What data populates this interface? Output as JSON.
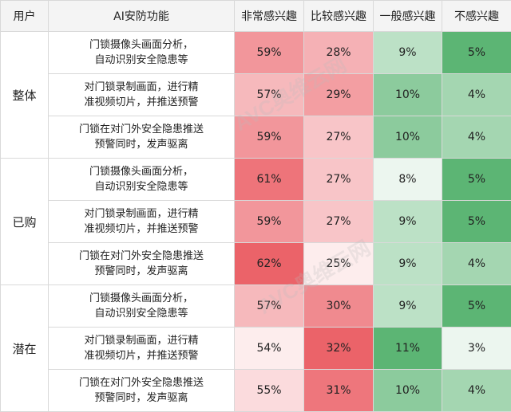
{
  "chart_data": {
    "type": "table",
    "headers": [
      "用户",
      "AI安防功能",
      "非常感兴趣",
      "比较感兴趣",
      "一般感兴趣",
      "不感兴趣"
    ],
    "groups": [
      {
        "name": "整体",
        "rows": [
          {
            "feature": "门锁摄像头画面分析，\n自动识别安全隐患等",
            "values": [
              "59%",
              "28%",
              "9%",
              "5%"
            ]
          },
          {
            "feature": "对门锁录制画面，进行精\n准视频切片，并推送预警",
            "values": [
              "57%",
              "29%",
              "10%",
              "4%"
            ]
          },
          {
            "feature": "门锁在对门外安全隐患推送\n预警同时，发声驱离",
            "values": [
              "59%",
              "27%",
              "10%",
              "4%"
            ]
          }
        ]
      },
      {
        "name": "已购",
        "rows": [
          {
            "feature": "门锁摄像头画面分析，\n自动识别安全隐患等",
            "values": [
              "61%",
              "27%",
              "8%",
              "5%"
            ]
          },
          {
            "feature": "对门锁录制画面，进行精\n准视频切片，并推送预警",
            "values": [
              "59%",
              "27%",
              "9%",
              "5%"
            ]
          },
          {
            "feature": "门锁在对门外安全隐患推送\n预警同时，发声驱离",
            "values": [
              "62%",
              "25%",
              "9%",
              "4%"
            ]
          }
        ]
      },
      {
        "name": "潜在",
        "rows": [
          {
            "feature": "门锁摄像头画面分析，\n自动识别安全隐患等",
            "values": [
              "57%",
              "30%",
              "9%",
              "5%"
            ]
          },
          {
            "feature": "对门锁录制画面，进行精\n准视频切片，并推送预警",
            "values": [
              "54%",
              "32%",
              "11%",
              "3%"
            ]
          },
          {
            "feature": "门锁在对门外安全隐患推送\n预警同时，发声驱离",
            "values": [
              "55%",
              "31%",
              "10%",
              "4%"
            ]
          }
        ]
      }
    ],
    "palette": {
      "red": "#e8474f",
      "green": "#3fa85b",
      "neutral": "#ffffff"
    },
    "watermark": "AVC奥维云网"
  }
}
